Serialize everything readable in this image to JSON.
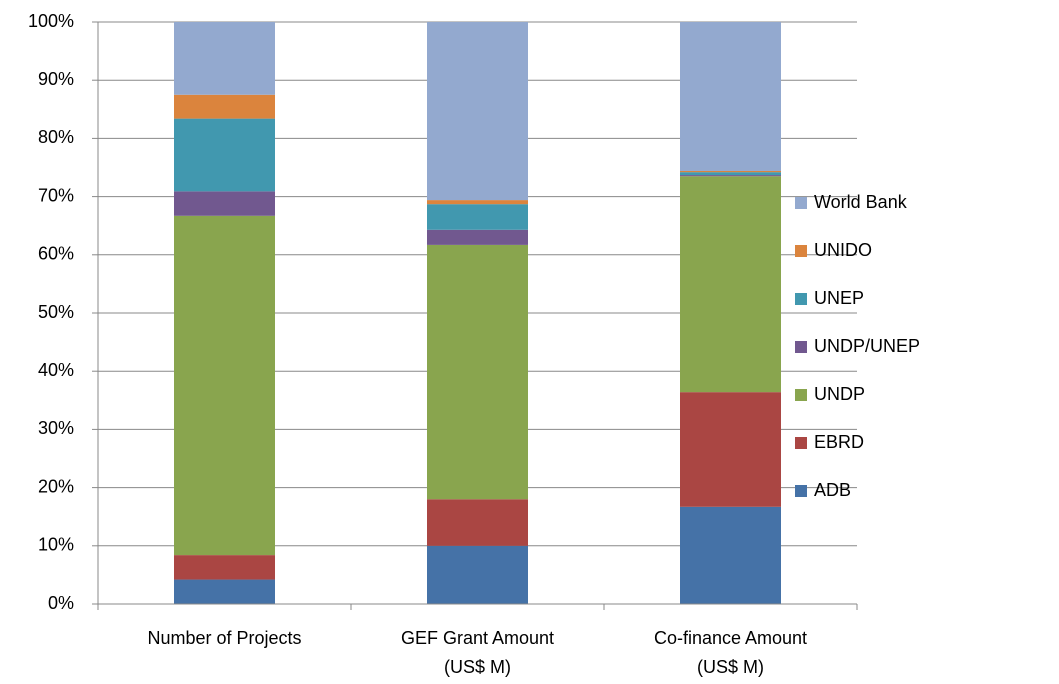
{
  "chart_data": {
    "type": "stacked_bar",
    "categories": [
      "Number of Projects",
      "GEF Grant Amount\n(US$ M)",
      "Co-finance Amount\n(US$ M)"
    ],
    "series": [
      {
        "name": "ADB",
        "color": "#4572a7",
        "values": [
          4.2,
          10.0,
          16.7
        ]
      },
      {
        "name": "EBRD",
        "color": "#aa4643",
        "values": [
          4.2,
          8.0,
          19.7
        ]
      },
      {
        "name": "UNDP",
        "color": "#89a54e",
        "values": [
          58.3,
          43.7,
          37.1
        ]
      },
      {
        "name": "UNDP/UNEP",
        "color": "#71588f",
        "values": [
          4.2,
          2.6,
          0.2
        ]
      },
      {
        "name": "UNEP",
        "color": "#4198af",
        "values": [
          12.5,
          4.4,
          0.5
        ]
      },
      {
        "name": "UNIDO",
        "color": "#db843d",
        "values": [
          4.1,
          0.7,
          0.2
        ]
      },
      {
        "name": "World Bank",
        "color": "#93a9cf",
        "values": [
          12.5,
          30.6,
          25.6
        ]
      }
    ],
    "ylim": [
      0,
      100
    ],
    "yticks": [
      {
        "value": 0,
        "label": "0%"
      },
      {
        "value": 10,
        "label": "10%"
      },
      {
        "value": 20,
        "label": "20%"
      },
      {
        "value": 30,
        "label": "30%"
      },
      {
        "value": 40,
        "label": "40%"
      },
      {
        "value": 50,
        "label": "50%"
      },
      {
        "value": 60,
        "label": "60%"
      },
      {
        "value": 70,
        "label": "70%"
      },
      {
        "value": 80,
        "label": "80%"
      },
      {
        "value": 90,
        "label": "90%"
      },
      {
        "value": 100,
        "label": "100%"
      }
    ],
    "grid": true,
    "legend": "right"
  }
}
